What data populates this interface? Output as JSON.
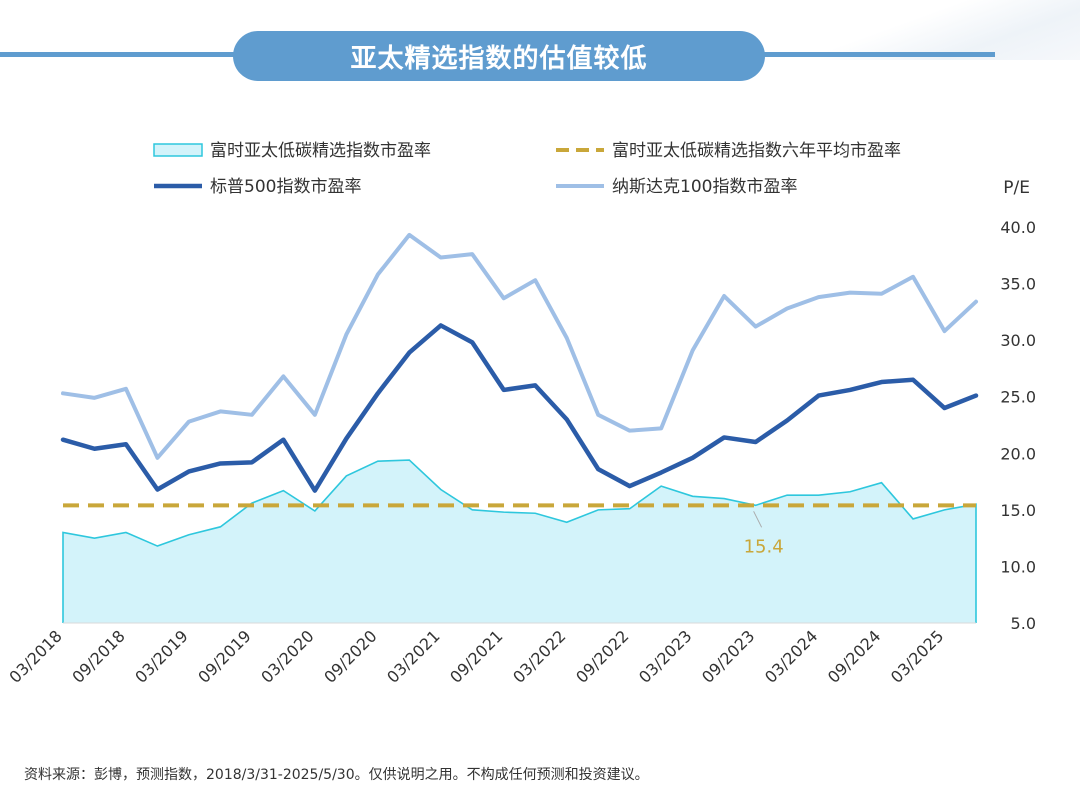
{
  "header": {
    "title": "亚太精选指数的估值较低"
  },
  "footer": {
    "source": "资料来源：彭博，预测指数，2018/3/31-2025/5/30。仅供说明之用。不构成任何预测和投资建议。"
  },
  "colors": {
    "title_bg": "#5f9ccf",
    "area_fill": "#d3f3fa",
    "area_stroke": "#2ec7dd",
    "avg_line": "#c9a73a",
    "sp500": "#2b5ca8",
    "nasdaq": "#9fbfe6"
  },
  "chart_data": {
    "type": "line",
    "ylabel": "P/E",
    "ylim": [
      5,
      40
    ],
    "yticks": [
      "5.0",
      "10.0",
      "15.0",
      "20.0",
      "25.0",
      "30.0",
      "35.0",
      "40.0"
    ],
    "x": [
      "03/2018",
      "06/2018",
      "09/2018",
      "12/2018",
      "03/2019",
      "06/2019",
      "09/2019",
      "12/2019",
      "03/2020",
      "06/2020",
      "09/2020",
      "12/2020",
      "03/2021",
      "06/2021",
      "09/2021",
      "12/2021",
      "03/2022",
      "06/2022",
      "09/2022",
      "12/2022",
      "03/2023",
      "06/2023",
      "09/2023",
      "12/2023",
      "03/2024",
      "06/2024",
      "09/2024",
      "12/2024",
      "03/2025",
      "05/2025"
    ],
    "xtick_labels": [
      "03/2018",
      "09/2018",
      "03/2019",
      "09/2019",
      "03/2020",
      "09/2020",
      "03/2021",
      "09/2021",
      "03/2022",
      "09/2022",
      "03/2023",
      "09/2023",
      "03/2024",
      "09/2024",
      "03/2025"
    ],
    "series": [
      {
        "name": "富时亚太低碳精选指数市盈率",
        "style": "area",
        "values": [
          13.0,
          12.5,
          13.0,
          11.8,
          12.8,
          13.5,
          15.6,
          16.7,
          14.9,
          18.0,
          19.3,
          19.4,
          16.8,
          15.0,
          14.8,
          14.7,
          13.9,
          15.0,
          15.1,
          17.1,
          16.2,
          16.0,
          15.4,
          16.3,
          16.3,
          16.6,
          17.4,
          14.2,
          15.0,
          15.5
        ]
      },
      {
        "name": "富时亚太低碳精选指数六年平均市盈率",
        "style": "dashed",
        "values": [
          15.4,
          15.4,
          15.4,
          15.4,
          15.4,
          15.4,
          15.4,
          15.4,
          15.4,
          15.4,
          15.4,
          15.4,
          15.4,
          15.4,
          15.4,
          15.4,
          15.4,
          15.4,
          15.4,
          15.4,
          15.4,
          15.4,
          15.4,
          15.4,
          15.4,
          15.4,
          15.4,
          15.4,
          15.4,
          15.4
        ]
      },
      {
        "name": "标普500指数市盈率",
        "style": "line",
        "values": [
          21.2,
          20.4,
          20.8,
          16.8,
          18.4,
          19.1,
          19.2,
          21.2,
          16.7,
          21.3,
          25.3,
          28.9,
          31.3,
          29.8,
          25.6,
          26.0,
          23.0,
          18.6,
          17.1,
          18.3,
          19.6,
          21.4,
          21.0,
          22.9,
          25.1,
          25.6,
          26.3,
          26.5,
          24.0,
          25.1
        ]
      },
      {
        "name": "纳斯达克100指数市盈率",
        "style": "line",
        "values": [
          25.3,
          24.9,
          25.7,
          19.6,
          22.8,
          23.7,
          23.4,
          26.8,
          23.4,
          30.5,
          35.8,
          39.3,
          37.3,
          37.6,
          33.7,
          35.3,
          30.2,
          23.4,
          22.0,
          22.2,
          29.1,
          33.9,
          31.2,
          32.8,
          33.8,
          34.2,
          34.1,
          35.6,
          30.8,
          33.4
        ]
      }
    ],
    "annotation": {
      "text": "15.4",
      "index": 22
    }
  }
}
